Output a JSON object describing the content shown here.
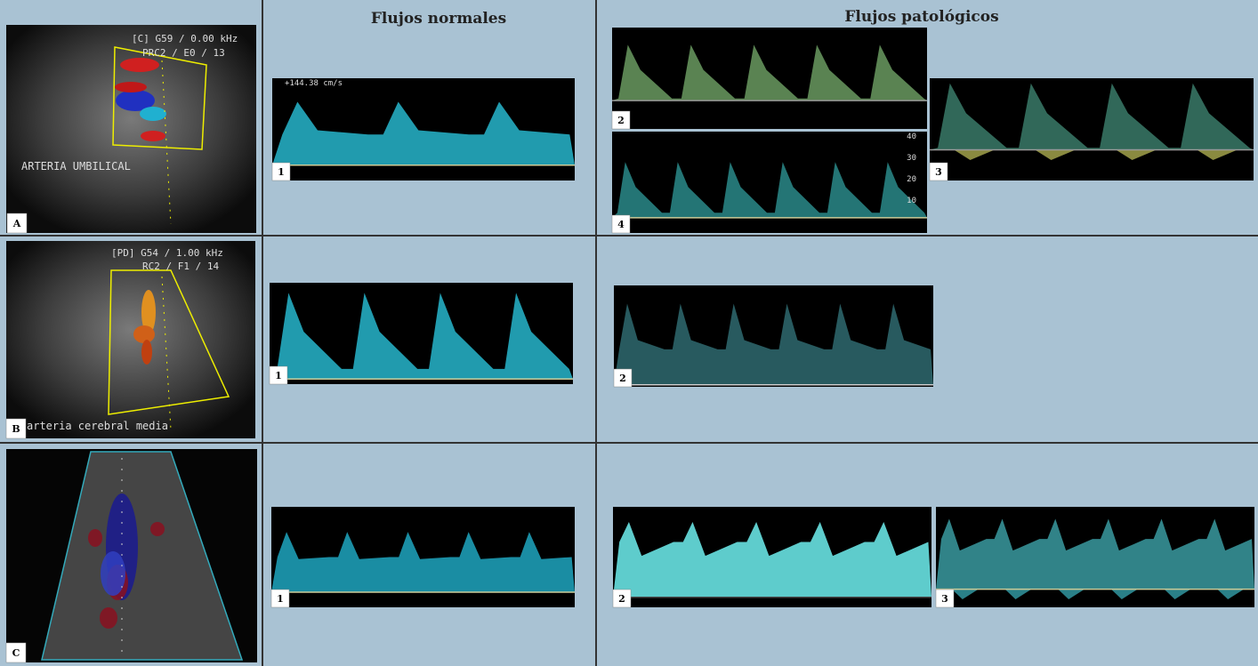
{
  "header": {
    "normal": "Flujos normales",
    "pathological": "Flujos patológicos"
  },
  "rows": [
    {
      "label": "A",
      "image_text": [
        "[C] G59 / 0.00 kHz",
        "PRC2 / E0 / 13",
        "ARTERIA UMBILICAL"
      ],
      "normal": {
        "label": "1",
        "text": "+144.38 cm/s"
      },
      "pathological": [
        {
          "label": "2"
        },
        {
          "label": "3"
        },
        {
          "label": "4",
          "scale": [
            "40",
            "30",
            "20",
            "10"
          ]
        }
      ]
    },
    {
      "label": "B",
      "image_text": [
        "[PD] G54 / 1.00 kHz",
        "RC2 / F1 / 14",
        "arteria cerebral media"
      ],
      "normal": {
        "label": "1"
      },
      "pathological": [
        {
          "label": "2"
        }
      ]
    },
    {
      "label": "C",
      "image_text": [],
      "normal": {
        "label": "1"
      },
      "pathological": [
        {
          "label": "2"
        },
        {
          "label": "3"
        }
      ]
    }
  ]
}
